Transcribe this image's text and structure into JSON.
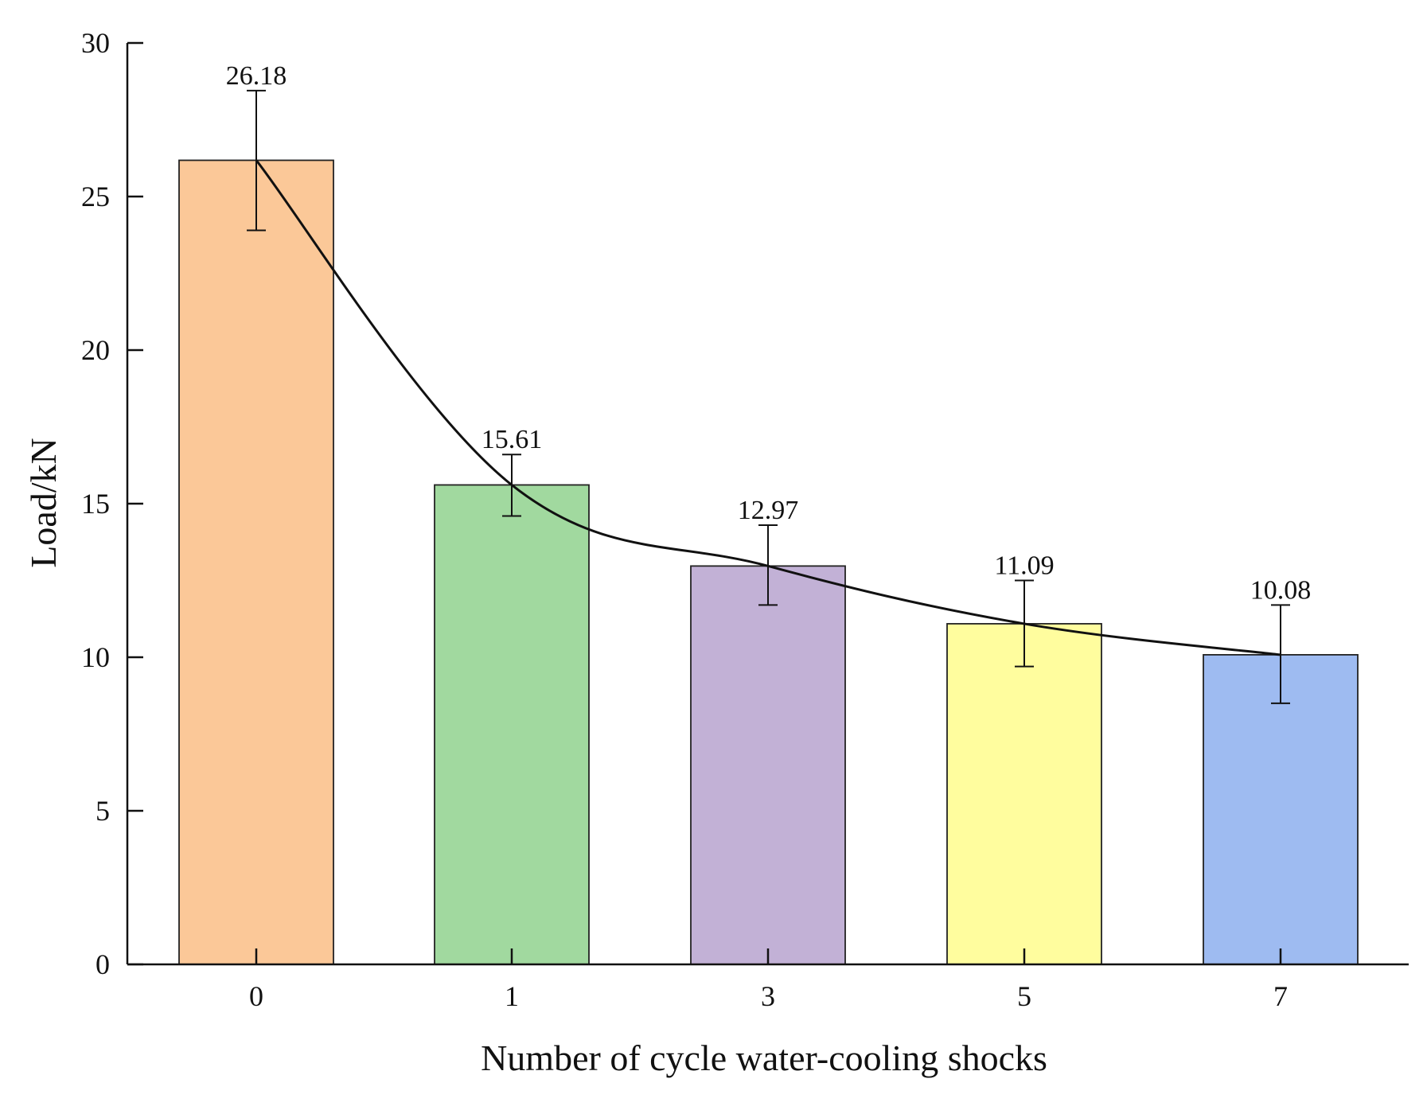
{
  "chart_data": {
    "type": "bar",
    "title": "",
    "xlabel": "Number of cycle water-cooling shocks",
    "ylabel": "Load/kN",
    "categories": [
      "0",
      "1",
      "3",
      "5",
      "7"
    ],
    "values": [
      26.18,
      15.61,
      12.97,
      11.09,
      10.08
    ],
    "error_bars": [
      [
        23.9,
        28.45
      ],
      [
        14.6,
        16.6
      ],
      [
        11.7,
        14.3
      ],
      [
        9.7,
        12.5
      ],
      [
        8.5,
        11.7
      ]
    ],
    "data_labels": [
      "26.18",
      "15.61",
      "12.97",
      "11.09",
      "10.08"
    ],
    "bar_colors": [
      "#FBC898",
      "#A1D99F",
      "#C2B1D6",
      "#FFFD9E",
      "#9EBBF1"
    ],
    "ylim": [
      0,
      30
    ],
    "yticks": [
      0,
      5,
      10,
      15,
      20,
      25,
      30
    ],
    "ytick_labels": [
      "0",
      "5",
      "10",
      "15",
      "20",
      "25",
      "30"
    ],
    "trend_line": true,
    "grid": false,
    "legend": "none"
  }
}
